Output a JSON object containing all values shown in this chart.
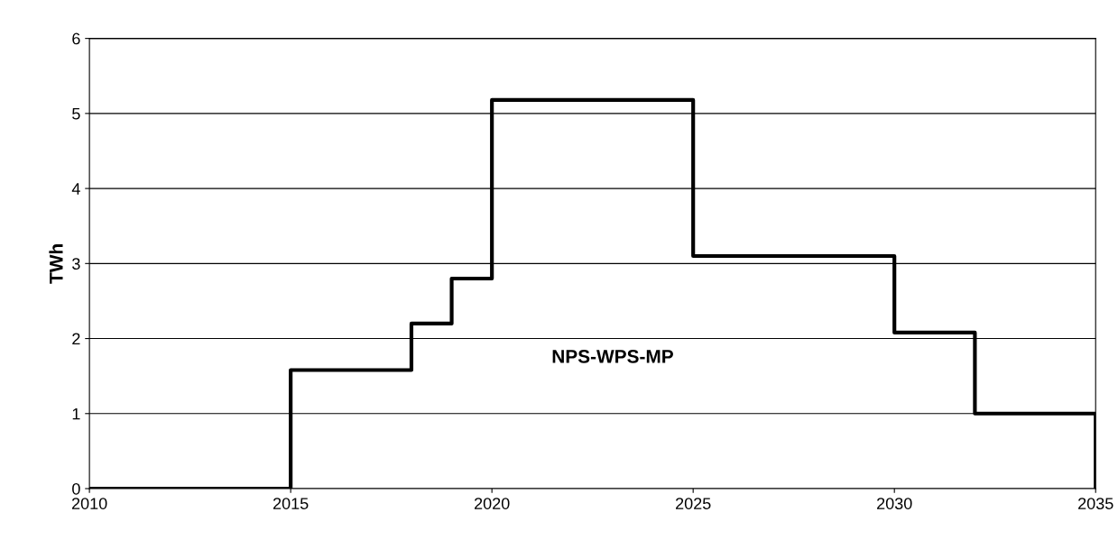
{
  "chart_data": {
    "type": "step",
    "ylabel": "TWh",
    "x": [
      2010,
      2015,
      2018,
      2019,
      2020,
      2025,
      2030,
      2032,
      2035
    ],
    "series": [
      {
        "color": "#000000",
        "values": [
          0,
          1.58,
          2.2,
          2.8,
          5.18,
          3.1,
          2.08,
          1.0,
          0
        ]
      }
    ],
    "xlim": [
      2010,
      2035
    ],
    "xticks": [
      2010,
      2015,
      2020,
      2025,
      2030,
      2035
    ],
    "ylim": [
      0,
      6
    ],
    "yticks": [
      0,
      1,
      2,
      3,
      4,
      5,
      6
    ],
    "grid": "y",
    "legend": false,
    "annotations": [
      "NPS-WPS-MP"
    ]
  }
}
